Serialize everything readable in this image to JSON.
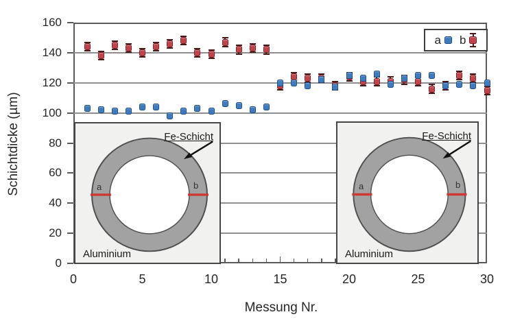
{
  "chart_data": {
    "type": "scatter",
    "title": "",
    "xlabel": "Messung Nr.",
    "ylabel": "Schichtdicke (µm)",
    "xlim": [
      0,
      30
    ],
    "ylim": [
      0,
      160
    ],
    "x_ticks": [
      0,
      5,
      10,
      15,
      20,
      25,
      30
    ],
    "y_ticks": [
      0,
      20,
      40,
      60,
      80,
      100,
      120,
      140,
      160
    ],
    "grid": true,
    "legend_position": "top-right",
    "x": [
      1,
      2,
      3,
      4,
      5,
      6,
      7,
      8,
      9,
      10,
      11,
      12,
      13,
      14,
      15,
      16,
      17,
      18,
      19,
      20,
      21,
      22,
      23,
      24,
      25,
      26,
      27,
      28,
      29,
      30
    ],
    "series": [
      {
        "name": "a",
        "color": "#3E7BBE",
        "border_color": "#1d4e89",
        "error_bar": false,
        "error": 0,
        "values": [
          103,
          102,
          101,
          101,
          104,
          104,
          98,
          101,
          103,
          101,
          106,
          105,
          102,
          104,
          120,
          120,
          118,
          122,
          117,
          125,
          123,
          126,
          119,
          123,
          125,
          125,
          118,
          119,
          118,
          120
        ]
      },
      {
        "name": "b",
        "color": "#C2424A",
        "border_color": "#7c1f26",
        "error_bar": true,
        "error": 2.8,
        "values": [
          144,
          138,
          145,
          143,
          140,
          144,
          146,
          148,
          140,
          139,
          147,
          142,
          143,
          142,
          118,
          124,
          123,
          123,
          118,
          124,
          121,
          121,
          121,
          122,
          121,
          116,
          118,
          125,
          123,
          115
        ]
      }
    ]
  },
  "legend": {
    "items": [
      {
        "label": "a"
      },
      {
        "label": "b"
      }
    ]
  },
  "insets": {
    "fe_label": "Fe-Schicht",
    "al_label": "Aluminium",
    "mark_a": "a",
    "mark_b": "b"
  },
  "colors": {
    "series_a": "#3E7BBE",
    "series_b": "#C2424A",
    "gridline": "#8f8f8f",
    "plot_border": "#595959",
    "ring_fill": "#a2a2a2",
    "inset_bg": "#f1f1ef",
    "red_mark": "#cf3832"
  }
}
